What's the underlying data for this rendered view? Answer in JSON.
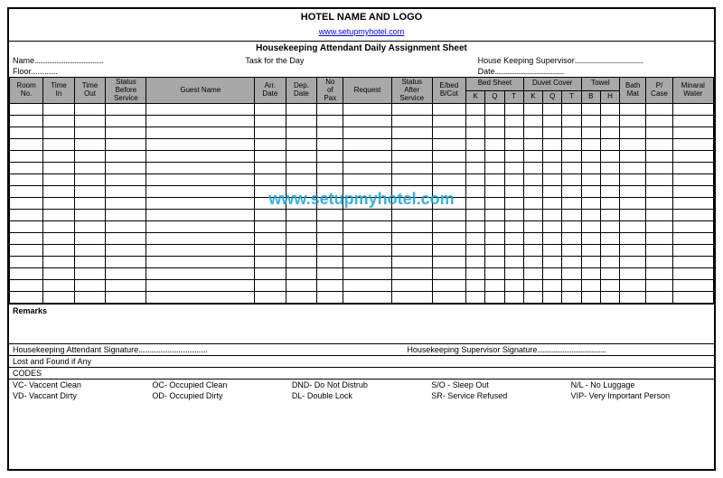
{
  "header": {
    "hotel_name": "HOTEL NAME AND LOGO",
    "link": "www.setupmyhotel.com"
  },
  "title": "Housekeeping Attendant Daily Assignment Sheet",
  "meta": {
    "name_label": "Name",
    "task_label": "Task for the Day",
    "supervisor_label": "House Keeping Supervisor",
    "floor_label": "Floor",
    "date_label": "Date"
  },
  "cols": {
    "room_no_1": "Room",
    "room_no_2": "No.",
    "time_in_1": "Time",
    "time_in_2": "In",
    "time_out_1": "Time",
    "time_out_2": "Out",
    "status_before_1": "Status",
    "status_before_2": "Before",
    "status_before_3": "Service",
    "guest_name": "Guest Name",
    "arr_date_1": "Arr.",
    "arr_date_2": "Date",
    "dep_date_1": "Dep.",
    "dep_date_2": "Date",
    "no_pax_1": "No",
    "no_pax_2": "of",
    "no_pax_3": "Pax",
    "request": "Request",
    "status_after_1": "Status",
    "status_after_2": "After",
    "status_after_3": "Service",
    "ebed_1": "E/bed",
    "ebed_2": "B/Cot",
    "bed_sheet": "Bed Sheet",
    "k": "K",
    "q": "Q",
    "t": "T",
    "duvet_cover": "Duvet Cover",
    "towel": "Towel",
    "b": "B",
    "h": "H",
    "bath_mat_1": "Bath",
    "bath_mat_2": "Mat",
    "pcase_1": "P/",
    "pcase_2": "Case",
    "mineral_1": "Minaral",
    "mineral_2": "Water"
  },
  "num_rows": 17,
  "remarks_label": "Remarks",
  "signatures": {
    "attendant": "Housekeeping Attendant Signature",
    "supervisor": "Housekeeping Supervisor Signature"
  },
  "lost_found": "Lost and Found if Any",
  "codes_label": "CODES",
  "codes": {
    "row1": [
      "VC- Vaccent Clean",
      "OC- Occupied Clean",
      "DND- Do Not Distrub",
      "S/O - Sleep Out",
      "N/L - No Luggage"
    ],
    "row2": [
      "VD- Vaccant Dirty",
      "OD- Occupied Dirty",
      "DL- Double Lock",
      "SR- Service Refused",
      "VIP- Very Important Person"
    ]
  },
  "watermark": "www.setupmyhotel.com",
  "colors": {
    "header_bg": "#a8a8a8",
    "link": "#0000ee",
    "watermark": "#1aa3d9",
    "border": "#000000"
  }
}
